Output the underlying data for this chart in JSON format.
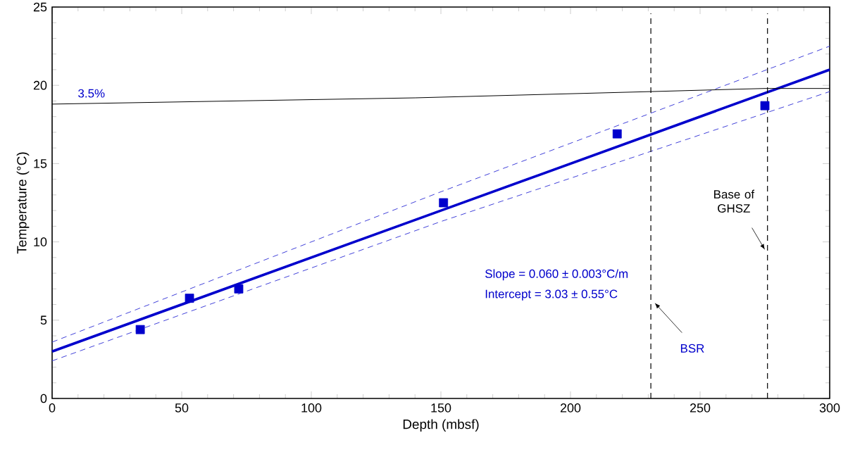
{
  "chart_data": {
    "type": "scatter",
    "xlabel": "Depth (mbsf)",
    "ylabel": "Temperature (°C)",
    "xlim": [
      0,
      300
    ],
    "ylim": [
      0,
      25
    ],
    "xticks": [
      0,
      50,
      100,
      150,
      200,
      250,
      300
    ],
    "yticks": [
      0,
      5,
      10,
      15,
      20,
      25
    ],
    "series": [
      {
        "color": "#0000cc",
        "marker": "square",
        "x": [
          34,
          53,
          72,
          151,
          218,
          275
        ],
        "values": [
          4.4,
          6.4,
          7.0,
          12.5,
          16.9,
          18.7
        ]
      },
      {
        "type": "line",
        "color": "#0000cc",
        "line_style": "solid",
        "x": [
          0,
          150,
          300
        ],
        "values": [
          3.0,
          12.0,
          21.0
        ]
      },
      {
        "type": "line",
        "color": "#4040d9",
        "line_style": "dashed",
        "x": [
          0,
          150,
          300
        ],
        "values": [
          3.6,
          13.2,
          22.5
        ]
      },
      {
        "type": "line",
        "color": "#4040d9",
        "line_style": "dashed",
        "x": [
          0,
          150,
          300
        ],
        "values": [
          2.4,
          11.3,
          19.6
        ]
      },
      {
        "type": "line",
        "name": "3.5%",
        "color": "#000000",
        "line_style": "solid",
        "x": [
          0,
          140,
          231,
          275,
          300
        ],
        "values": [
          18.8,
          19.2,
          19.6,
          19.8,
          19.8
        ]
      }
    ],
    "ref_lines": [
      {
        "axis": "x",
        "value": 231,
        "label": "BSR",
        "color": "#000000",
        "line_style": "dashed"
      },
      {
        "axis": "x",
        "value": 276,
        "label": "Base of GHSZ",
        "color": "#000000",
        "line_style": "dashed"
      }
    ],
    "annotations": [
      "Slope = 0.060 ± 0.003°C/m",
      "Intercept = 3.03 ± 0.55°C"
    ]
  }
}
